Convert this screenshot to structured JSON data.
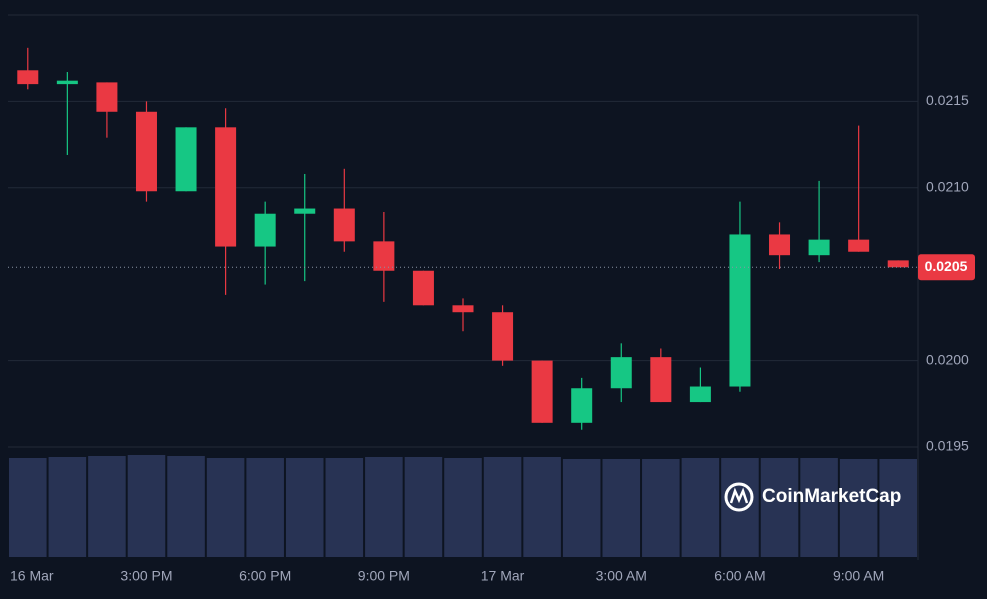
{
  "chart_data": {
    "type": "candlestick",
    "categories": [
      "16 Mar",
      null,
      null,
      "3:00 PM",
      null,
      null,
      "6:00 PM",
      null,
      null,
      "9:00 PM",
      null,
      null,
      "17 Mar",
      null,
      null,
      "3:00 AM",
      null,
      null,
      "6:00 AM",
      null,
      null,
      "9:00 AM",
      null
    ],
    "open": [
      0.02168,
      0.0216,
      0.02161,
      0.02144,
      0.02098,
      0.02135,
      0.02066,
      0.02085,
      0.02088,
      0.02069,
      0.02052,
      0.02032,
      0.02028,
      0.02,
      0.01964,
      0.01984,
      0.02002,
      0.01976,
      0.01985,
      0.02073,
      0.02061,
      0.0207,
      0.02058
    ],
    "high": [
      0.02181,
      0.02167,
      0.02161,
      0.0215,
      0.02135,
      0.02146,
      0.02092,
      0.02108,
      0.02111,
      0.02086,
      0.02052,
      0.02036,
      0.02032,
      0.02,
      0.0199,
      0.0201,
      0.02007,
      0.01996,
      0.02092,
      0.0208,
      0.02104,
      0.02136,
      0.02058
    ],
    "low": [
      0.02157,
      0.02119,
      0.02129,
      0.02092,
      0.02098,
      0.02038,
      0.02044,
      0.02046,
      0.02063,
      0.02034,
      0.02032,
      0.02017,
      0.01997,
      0.01964,
      0.0196,
      0.01976,
      0.01976,
      0.01976,
      0.01982,
      0.02053,
      0.02057,
      0.02063,
      0.02054
    ],
    "close": [
      0.0216,
      0.02162,
      0.02144,
      0.02098,
      0.02135,
      0.02066,
      0.02085,
      0.02088,
      0.02069,
      0.02052,
      0.02032,
      0.02028,
      0.02,
      0.01964,
      0.01984,
      0.02002,
      0.01976,
      0.01985,
      0.02073,
      0.02061,
      0.0207,
      0.02063,
      0.02054
    ],
    "volume": [
      99,
      100,
      101,
      102,
      101,
      99,
      99,
      99,
      99,
      100,
      100,
      99,
      100,
      100,
      98,
      98,
      98,
      99,
      99,
      99,
      99,
      98,
      98
    ],
    "up_color": "#16c784",
    "down_color": "#ea3943",
    "volume_color": "#283354",
    "ylim": [
      0.0195,
      0.022
    ],
    "yticks": [
      {
        "value": 0.0195,
        "label": "0.0195"
      },
      {
        "value": 0.02,
        "label": "0.0200"
      },
      {
        "value": 0.021,
        "label": "0.0210"
      },
      {
        "value": 0.0215,
        "label": "0.0215"
      }
    ],
    "last_price": {
      "value": 0.02054,
      "label": "0.0205"
    },
    "grid": true,
    "watermark": "CoinMarketCap"
  }
}
